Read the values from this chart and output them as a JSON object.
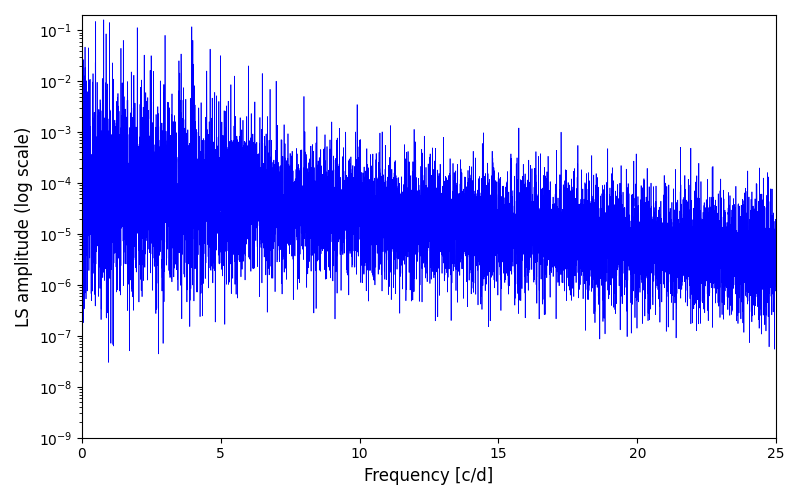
{
  "title": "",
  "xlabel": "Frequency [c/d]",
  "ylabel": "LS amplitude (log scale)",
  "line_color": "#0000FF",
  "line_width": 0.5,
  "xlim": [
    0,
    25
  ],
  "ylim_log_min": -9,
  "ylim_log_max": -0.7,
  "yscale": "log",
  "background_color": "#ffffff",
  "freq_max": 25.0,
  "n_points": 10000,
  "seed": 7
}
